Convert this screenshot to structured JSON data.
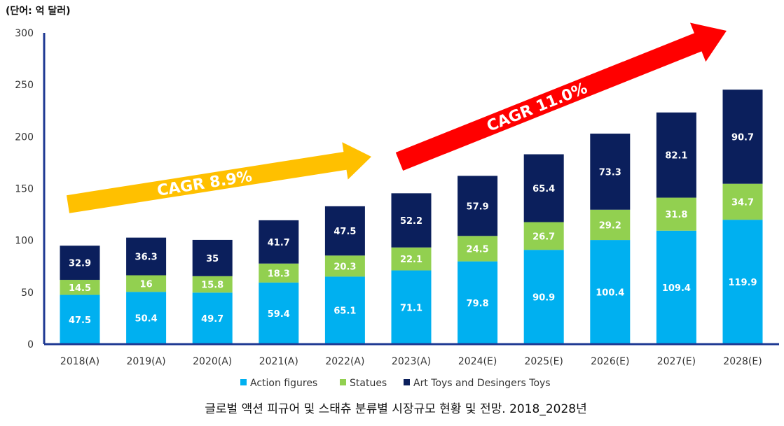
{
  "unit_label": "(단어: 억 달러)",
  "caption": "글로벌 액션 피규어 및 스태츄 분류별 시장규모 현황 및 전망. 2018_2028년",
  "cagr": [
    {
      "label": "CAGR 8.9%",
      "color": "#FFC000"
    },
    {
      "label": "CAGR 11.0%",
      "color": "#FF0000"
    }
  ],
  "colors": {
    "action": "#00B0F0",
    "statues": "#92D050",
    "art": "#0B1F5C",
    "axis": "#1F3A93"
  },
  "chart_data": {
    "type": "bar",
    "stacked": true,
    "categories": [
      "2018(A)",
      "2019(A)",
      "2020(A)",
      "2021(A)",
      "2022(A)",
      "2023(A)",
      "2024(E)",
      "2025(E)",
      "2026(E)",
      "2027(E)",
      "2028(E)"
    ],
    "series": [
      {
        "name": "Action figures",
        "color": "#00B0F0",
        "values": [
          47.5,
          50.4,
          49.7,
          59.4,
          65.1,
          71.1,
          79.8,
          90.9,
          100.4,
          109.4,
          119.9
        ]
      },
      {
        "name": "Statues",
        "color": "#92D050",
        "values": [
          14.5,
          16,
          15.8,
          18.3,
          20.3,
          22.1,
          24.5,
          26.7,
          29.2,
          31.8,
          34.7
        ]
      },
      {
        "name": "Art Toys and Desingers Toys",
        "color": "#0B1F5C",
        "values": [
          32.9,
          36.3,
          35,
          41.7,
          47.5,
          52.2,
          57.9,
          65.4,
          73.3,
          82.1,
          90.7
        ]
      }
    ],
    "yticks": [
      0,
      50,
      100,
      150,
      200,
      250,
      300
    ],
    "ylim": [
      0,
      300
    ],
    "grid": false,
    "legend": "bottom"
  }
}
